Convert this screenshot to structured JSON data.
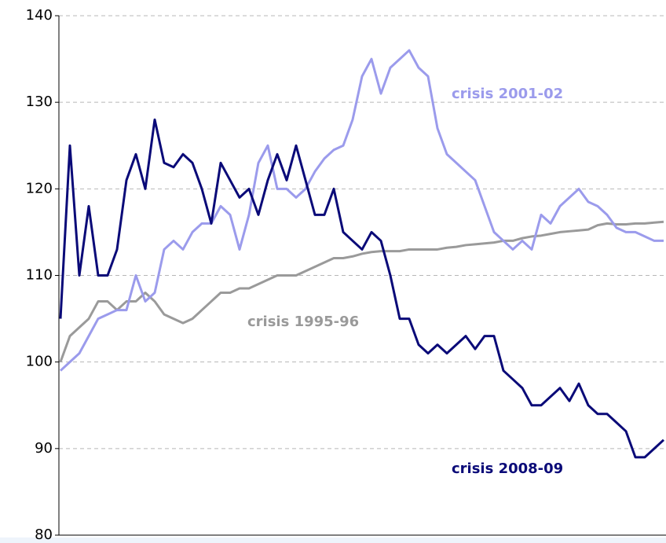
{
  "chart_data": {
    "type": "line",
    "ylim": [
      80,
      140
    ],
    "yticks": [
      80,
      90,
      100,
      110,
      120,
      130,
      140
    ],
    "grid": true,
    "series": [
      {
        "name": "crisis 1995-96",
        "color": "#9a9a9a",
        "values": [
          100,
          103,
          104,
          105,
          107,
          107,
          106,
          107,
          107,
          108,
          107,
          105.5,
          105,
          104.5,
          105,
          106,
          107,
          108,
          108,
          108.5,
          108.5,
          109,
          109.5,
          110,
          110,
          110,
          110.5,
          111,
          111.5,
          112,
          112,
          112.2,
          112.5,
          112.7,
          112.8,
          112.8,
          112.8,
          113,
          113,
          113,
          113,
          113.2,
          113.3,
          113.5,
          113.6,
          113.7,
          113.8,
          114,
          114,
          114.3,
          114.5,
          114.6,
          114.8,
          115,
          115.1,
          115.2,
          115.3,
          115.8,
          116,
          115.9,
          115.9,
          116,
          116,
          116.1,
          116.2
        ]
      },
      {
        "name": "crisis 2001-02",
        "color": "#9b9bec",
        "values": [
          99,
          100,
          101,
          103,
          105,
          105.5,
          106,
          106,
          110,
          107,
          108,
          113,
          114,
          113,
          115,
          116,
          116,
          118,
          117,
          113,
          117,
          123,
          125,
          120,
          120,
          119,
          120,
          122,
          123.5,
          124.5,
          125,
          128,
          133,
          135,
          131,
          134,
          135,
          136,
          134,
          133,
          127,
          124,
          123,
          122,
          121,
          118,
          115,
          114,
          113,
          114,
          113,
          117,
          116,
          118,
          119,
          120,
          118.5,
          118,
          117,
          115.5,
          115,
          115,
          114.5,
          114,
          114
        ]
      },
      {
        "name": "crisis 2008-09",
        "color": "#0a0a78",
        "values": [
          105,
          125,
          110,
          118,
          110,
          110,
          113,
          121,
          124,
          120,
          128,
          123,
          122.5,
          124,
          123,
          120,
          116,
          123,
          121,
          119,
          120,
          117,
          121,
          124,
          121,
          125,
          121,
          117,
          117,
          120,
          115,
          114,
          113,
          115,
          114,
          110,
          105,
          105,
          102,
          101,
          102,
          101,
          102,
          103,
          101.5,
          103,
          103,
          99,
          98,
          97,
          95,
          95,
          96,
          97,
          95.5,
          97.5,
          95,
          94,
          94,
          93,
          92,
          89,
          89,
          90,
          91
        ]
      }
    ]
  }
}
